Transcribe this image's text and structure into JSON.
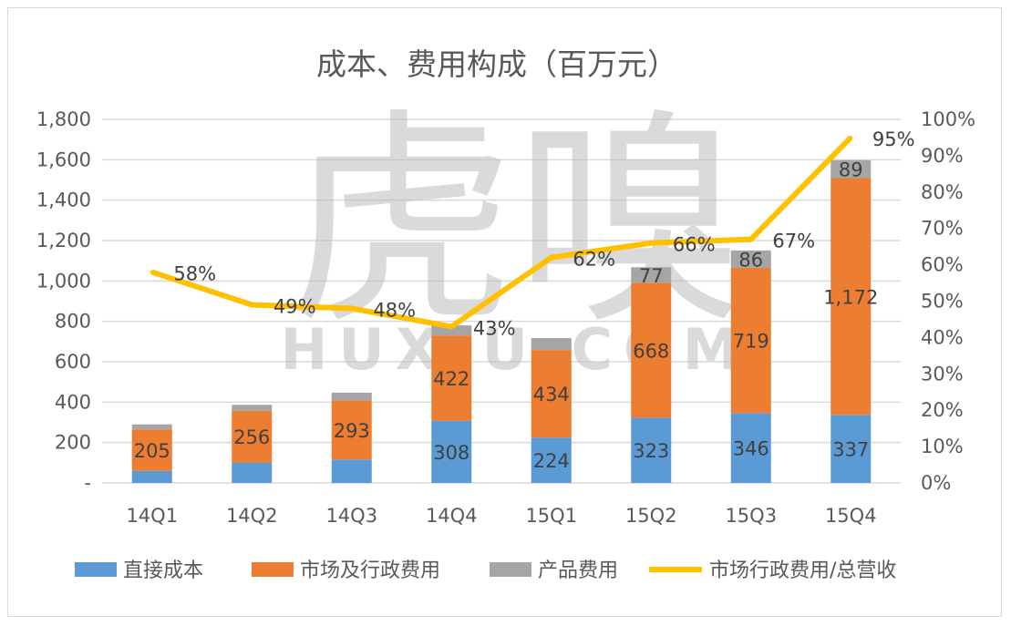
{
  "chart_data": {
    "type": "bar",
    "stacked": true,
    "title": "成本、费用构成（百万元）",
    "categories": [
      "14Q1",
      "14Q2",
      "14Q3",
      "14Q4",
      "15Q1",
      "15Q2",
      "15Q3",
      "15Q4"
    ],
    "series": [
      {
        "name": "直接成本",
        "color": "#5B9BD5",
        "values": [
          60,
          101,
          116,
          308,
          224,
          323,
          346,
          337
        ],
        "labels": [
          null,
          null,
          null,
          "308",
          "224",
          "323",
          "346",
          "337"
        ]
      },
      {
        "name": "市场及行政费用",
        "color": "#ED7D31",
        "values": [
          205,
          256,
          293,
          422,
          434,
          668,
          719,
          1172
        ],
        "labels": [
          "205",
          "256",
          "293",
          "422",
          "434",
          "668",
          "719",
          "1,172"
        ]
      },
      {
        "name": "产品费用",
        "color": "#A5A5A5",
        "values": [
          25,
          30,
          38,
          50,
          59,
          77,
          86,
          89
        ],
        "labels": [
          null,
          null,
          null,
          null,
          null,
          "77",
          "86",
          "89"
        ]
      }
    ],
    "line_series": {
      "name": "市场行政费用/总营收",
      "color": "#FFC000",
      "axis": "right",
      "values": [
        58,
        49,
        48,
        43,
        62,
        66,
        67,
        95
      ],
      "labels": [
        "58%",
        "49%",
        "48%",
        "43%",
        "62%",
        "66%",
        "67%",
        "95%"
      ]
    },
    "y_left": {
      "range": [
        0,
        1800
      ],
      "ticks": [
        "-",
        "200",
        "400",
        "600",
        "800",
        "1,000",
        "1,200",
        "1,400",
        "1,600",
        "1,800"
      ]
    },
    "y_right": {
      "range": [
        0,
        100
      ],
      "ticks": [
        "0%",
        "10%",
        "20%",
        "30%",
        "40%",
        "50%",
        "60%",
        "70%",
        "80%",
        "90%",
        "100%"
      ]
    },
    "grid": true,
    "legend": "bottom"
  },
  "watermark": {
    "main": "虎嗅",
    "sub": "HUXIU.COM"
  }
}
